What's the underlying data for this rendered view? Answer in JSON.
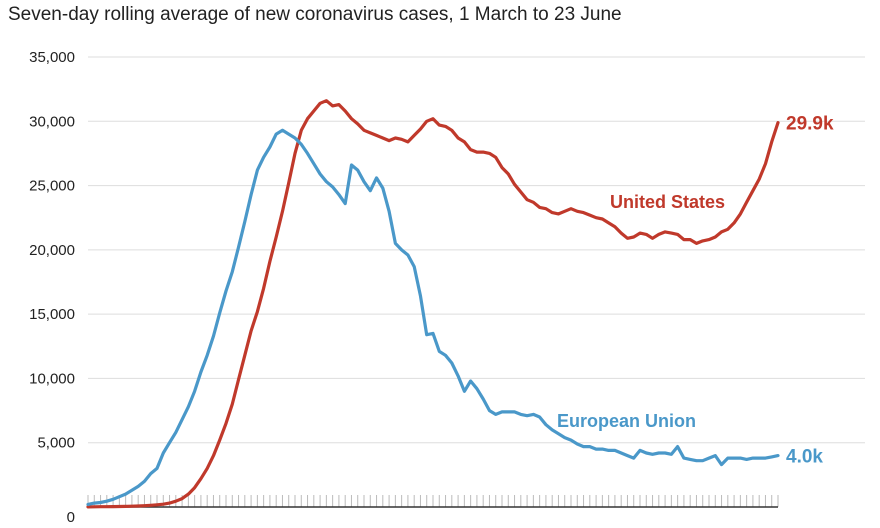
{
  "chart_data": {
    "type": "line",
    "title": "Seven-day rolling average of new coronavirus cases, 1 March to 23 June",
    "xlabel": "",
    "ylabel": "",
    "x_range": [
      "1 March",
      "23 June"
    ],
    "ylim": [
      0,
      35000
    ],
    "yticks": [
      0,
      5000,
      10000,
      15000,
      20000,
      25000,
      30000,
      35000
    ],
    "ytick_labels": [
      "0",
      "5,000",
      "10,000",
      "15,000",
      "20,000",
      "25,000",
      "30,000",
      "35,000"
    ],
    "grid": true,
    "colors": {
      "United States": "#c0392b",
      "European Union": "#4a98c9"
    },
    "series": [
      {
        "name": "United States",
        "end_label": "29.9k",
        "values": [
          10,
          15,
          20,
          25,
          30,
          40,
          50,
          60,
          80,
          100,
          130,
          170,
          220,
          300,
          450,
          650,
          1000,
          1500,
          2200,
          3000,
          4000,
          5200,
          6500,
          8000,
          9900,
          11800,
          13700,
          15200,
          17000,
          19100,
          21000,
          23000,
          25200,
          27500,
          29300,
          30200,
          30800,
          31400,
          31600,
          31200,
          31300,
          30800,
          30200,
          29800,
          29300,
          29100,
          28900,
          28700,
          28500,
          28700,
          28600,
          28400,
          28900,
          29400,
          30000,
          30200,
          29700,
          29600,
          29300,
          28700,
          28400,
          27800,
          27600,
          27600,
          27500,
          27200,
          26400,
          25900,
          25100,
          24500,
          23900,
          23700,
          23300,
          23200,
          22900,
          22800,
          23000,
          23200,
          23000,
          22900,
          22700,
          22500,
          22400,
          22100,
          21800,
          21300,
          20900,
          21000,
          21300,
          21200,
          20900,
          21200,
          21400,
          21300,
          21200,
          20800,
          20800,
          20500,
          20700,
          20800,
          21000,
          21400,
          21600,
          22100,
          22800,
          23700,
          24600,
          25500,
          26700,
          28400,
          29900
        ]
      },
      {
        "name": "European Union",
        "end_label": "4.0k",
        "values": [
          200,
          300,
          350,
          450,
          600,
          800,
          1000,
          1300,
          1600,
          2000,
          2600,
          3000,
          4200,
          5000,
          5800,
          6800,
          7800,
          9000,
          10500,
          11800,
          13300,
          15100,
          16800,
          18300,
          20200,
          22200,
          24300,
          26200,
          27200,
          28000,
          29000,
          29300,
          29000,
          28700,
          28200,
          27500,
          26700,
          25900,
          25300,
          24900,
          24300,
          23600,
          26600,
          26200,
          25300,
          24600,
          25600,
          24800,
          23000,
          20500,
          20000,
          19600,
          18700,
          16400,
          13400,
          13500,
          12100,
          11800,
          11200,
          10200,
          9000,
          9800,
          9200,
          8400,
          7500,
          7200,
          7400,
          7400,
          7400,
          7200,
          7100,
          7200,
          7000,
          6400,
          6000,
          5700,
          5400,
          5200,
          4900,
          4700,
          4700,
          4500,
          4500,
          4400,
          4400,
          4200,
          4000,
          3800,
          4400,
          4200,
          4100,
          4200,
          4200,
          4100,
          4700,
          3800,
          3700,
          3600,
          3600,
          3800,
          4000,
          3300,
          3800,
          3800,
          3800,
          3700,
          3800,
          3800,
          3800,
          3900,
          4000
        ]
      }
    ]
  }
}
